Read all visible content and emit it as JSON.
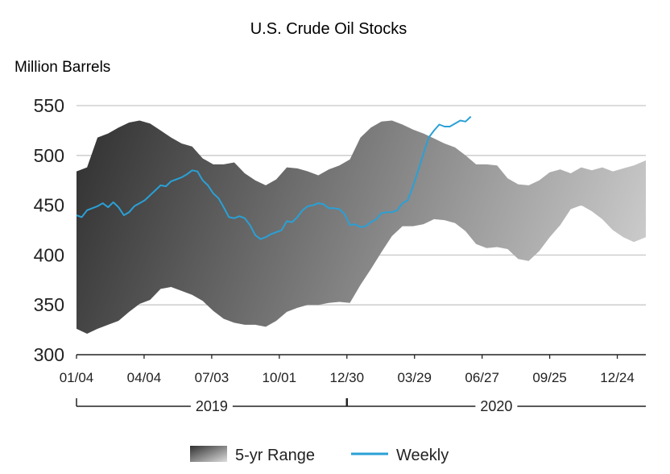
{
  "chart_data": {
    "type": "area",
    "title": "U.S. Crude Oil Stocks",
    "ylabel": "Million Barrels",
    "xlabel": "",
    "ylim": [
      300,
      550
    ],
    "yticks": [
      300,
      350,
      400,
      450,
      500,
      550
    ],
    "x_start": "2019-01-04",
    "x_end": "2021-01-31",
    "xticks": [
      {
        "date": "2019-01-04",
        "label": "01/04"
      },
      {
        "date": "2019-04-04",
        "label": "04/04"
      },
      {
        "date": "2019-07-03",
        "label": "07/03"
      },
      {
        "date": "2019-10-01",
        "label": "10/01"
      },
      {
        "date": "2019-12-30",
        "label": "12/30"
      },
      {
        "date": "2020-03-29",
        "label": "03/29"
      },
      {
        "date": "2020-06-27",
        "label": "06/27"
      },
      {
        "date": "2020-09-25",
        "label": "09/25"
      },
      {
        "date": "2020-12-24",
        "label": "12/24"
      }
    ],
    "year_labels": [
      {
        "label": "2019",
        "start": "2019-01-04",
        "end": "2019-12-30"
      },
      {
        "label": "2020",
        "start": "2019-12-30",
        "end": "2021-01-31"
      }
    ],
    "grid": true,
    "legend_position": "bottom",
    "range_series": {
      "name": "5-yr Range",
      "dates": [
        "2019-01-04",
        "2019-01-18",
        "2019-02-01",
        "2019-02-15",
        "2019-03-01",
        "2019-03-15",
        "2019-03-29",
        "2019-04-12",
        "2019-04-26",
        "2019-05-10",
        "2019-05-24",
        "2019-06-07",
        "2019-06-21",
        "2019-07-05",
        "2019-07-19",
        "2019-08-02",
        "2019-08-16",
        "2019-08-30",
        "2019-09-13",
        "2019-09-27",
        "2019-10-11",
        "2019-10-25",
        "2019-11-08",
        "2019-11-22",
        "2019-12-06",
        "2019-12-20",
        "2020-01-03",
        "2020-01-17",
        "2020-01-31",
        "2020-02-14",
        "2020-02-28",
        "2020-03-13",
        "2020-03-27",
        "2020-04-10",
        "2020-04-24",
        "2020-05-08",
        "2020-05-22",
        "2020-06-05",
        "2020-06-19",
        "2020-07-03",
        "2020-07-17",
        "2020-07-31",
        "2020-08-14",
        "2020-08-28",
        "2020-09-11",
        "2020-09-25",
        "2020-10-09",
        "2020-10-23",
        "2020-11-06",
        "2020-11-20",
        "2020-12-04",
        "2020-12-18",
        "2021-01-01",
        "2021-01-15",
        "2021-01-31"
      ],
      "high": [
        484,
        488,
        518,
        522,
        528,
        533,
        535,
        532,
        525,
        518,
        512,
        509,
        497,
        491,
        491,
        493,
        482,
        475,
        470,
        476,
        488,
        487,
        484,
        480,
        486,
        490,
        496,
        518,
        528,
        534,
        535,
        531,
        526,
        522,
        517,
        512,
        508,
        500,
        491,
        491,
        490,
        477,
        471,
        470,
        475,
        483,
        486,
        482,
        488,
        485,
        488,
        484,
        487,
        490,
        495
      ],
      "low": [
        326,
        321,
        326,
        330,
        334,
        343,
        351,
        355,
        366,
        368,
        364,
        360,
        354,
        344,
        336,
        332,
        330,
        330,
        328,
        334,
        343,
        347,
        350,
        350,
        352,
        353,
        352,
        370,
        386,
        403,
        419,
        429,
        429,
        431,
        436,
        435,
        432,
        424,
        411,
        407,
        408,
        406,
        396,
        394,
        404,
        418,
        430,
        446,
        450,
        444,
        436,
        425,
        418,
        413,
        418
      ]
    },
    "series": [
      {
        "name": "Weekly",
        "color": "#2aa0d6",
        "dates": [
          "2019-01-04",
          "2019-01-11",
          "2019-01-18",
          "2019-01-25",
          "2019-02-01",
          "2019-02-08",
          "2019-02-15",
          "2019-02-22",
          "2019-03-01",
          "2019-03-08",
          "2019-03-15",
          "2019-03-22",
          "2019-03-29",
          "2019-04-05",
          "2019-04-12",
          "2019-04-19",
          "2019-04-26",
          "2019-05-03",
          "2019-05-10",
          "2019-05-17",
          "2019-05-24",
          "2019-05-31",
          "2019-06-07",
          "2019-06-14",
          "2019-06-21",
          "2019-06-28",
          "2019-07-05",
          "2019-07-12",
          "2019-07-19",
          "2019-07-26",
          "2019-08-02",
          "2019-08-09",
          "2019-08-16",
          "2019-08-23",
          "2019-08-30",
          "2019-09-06",
          "2019-09-13",
          "2019-09-20",
          "2019-09-27",
          "2019-10-04",
          "2019-10-11",
          "2019-10-18",
          "2019-10-25",
          "2019-11-01",
          "2019-11-08",
          "2019-11-15",
          "2019-11-22",
          "2019-11-29",
          "2019-12-06",
          "2019-12-13",
          "2019-12-20",
          "2019-12-27",
          "2020-01-03",
          "2020-01-10",
          "2020-01-17",
          "2020-01-24",
          "2020-01-31",
          "2020-02-07",
          "2020-02-14",
          "2020-02-21",
          "2020-02-28",
          "2020-03-06",
          "2020-03-13",
          "2020-03-20",
          "2020-03-27",
          "2020-04-03",
          "2020-04-10",
          "2020-04-17",
          "2020-04-24",
          "2020-05-01",
          "2020-05-08",
          "2020-05-15",
          "2020-05-22",
          "2020-05-29",
          "2020-06-05",
          "2020-06-12"
        ],
        "values": [
          440,
          438,
          445,
          447,
          449,
          452,
          448,
          453,
          448,
          440,
          443,
          449,
          452,
          455,
          460,
          465,
          470,
          469,
          474,
          476,
          478,
          481,
          485,
          484,
          475,
          470,
          462,
          457,
          448,
          438,
          437,
          439,
          437,
          430,
          420,
          416,
          418,
          421,
          423,
          425,
          434,
          433,
          438,
          445,
          449,
          450,
          452,
          451,
          447,
          447,
          446,
          441,
          430,
          431,
          428,
          429,
          433,
          436,
          442,
          443,
          443,
          445,
          452,
          455,
          469,
          485,
          502,
          518,
          525,
          531,
          529,
          529,
          532,
          535,
          534,
          539
        ]
      }
    ],
    "legend": [
      {
        "label": "5-yr Range",
        "kind": "gradient-box"
      },
      {
        "label": "Weekly",
        "kind": "line",
        "color": "#2aa0d6"
      }
    ],
    "colors": {
      "range_dark": "#3a3a3a",
      "range_light": "#d2d2d2",
      "grid": "#c8c8c8",
      "axis": "#222222",
      "weekly": "#2aa0d6"
    }
  }
}
